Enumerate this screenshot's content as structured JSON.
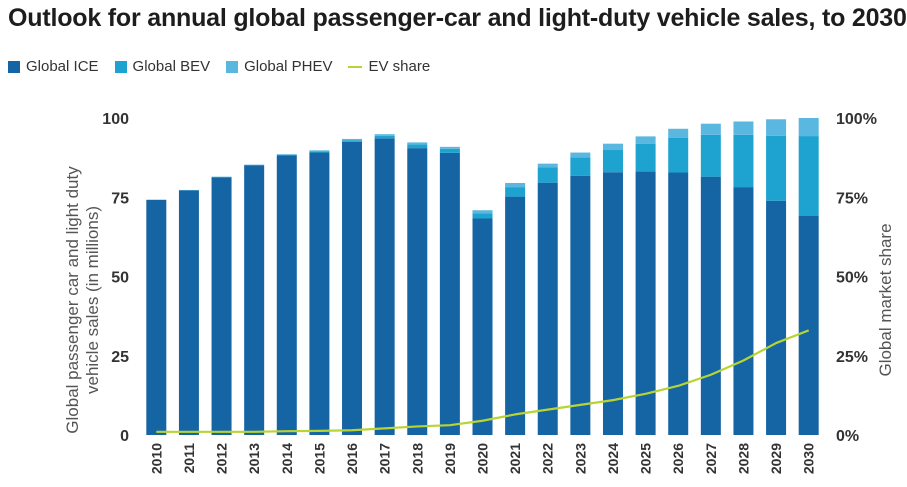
{
  "chart_data": {
    "type": "bar",
    "title": "Outlook for annual global passenger-car and light-duty vehicle sales, to 2030",
    "categories": [
      "2010",
      "2011",
      "2012",
      "2013",
      "2014",
      "2015",
      "2016",
      "2017",
      "2018",
      "2019",
      "2020",
      "2021",
      "2022",
      "2023",
      "2024",
      "2025",
      "2026",
      "2027",
      "2028",
      "2029",
      "2030"
    ],
    "series": [
      {
        "name": "Global ICE",
        "color": "#1565a5",
        "values": [
          74.2,
          77.2,
          81.3,
          85.1,
          88.2,
          89.1,
          92.5,
          93.6,
          90.5,
          89.0,
          68.3,
          75.2,
          79.6,
          81.8,
          82.9,
          83.1,
          82.8,
          81.5,
          78.2,
          73.9,
          69.2
        ]
      },
      {
        "name": "Global BEV",
        "color": "#1ea3d0",
        "values": [
          0.0,
          0.05,
          0.1,
          0.1,
          0.2,
          0.4,
          0.5,
          0.8,
          1.2,
          1.3,
          1.6,
          3.0,
          4.8,
          5.8,
          7.0,
          8.8,
          11.0,
          13.2,
          16.5,
          20.5,
          25.1
        ]
      },
      {
        "name": "Global PHEV",
        "color": "#5ab7e0",
        "values": [
          0.0,
          0.05,
          0.1,
          0.1,
          0.2,
          0.3,
          0.4,
          0.5,
          0.6,
          0.6,
          1.0,
          1.3,
          1.2,
          1.5,
          2.0,
          2.3,
          2.8,
          3.5,
          4.2,
          5.2,
          5.7
        ]
      }
    ],
    "line_series": {
      "name": "EV share",
      "color": "#b8d432",
      "values": [
        0.01,
        0.01,
        0.01,
        0.01,
        0.012,
        0.013,
        0.015,
        0.021,
        0.027,
        0.031,
        0.045,
        0.065,
        0.08,
        0.095,
        0.11,
        0.13,
        0.155,
        0.19,
        0.235,
        0.29,
        0.33
      ]
    },
    "ylabel": "Global passenger car and light duty vehicle sales (in millions)",
    "ylabel_lines": [
      "Global passenger car and light duty",
      "vehicle sales (in millions)"
    ],
    "y2label": "Global market share",
    "ylim": [
      0,
      100
    ],
    "y2lim": [
      0,
      1
    ],
    "yticks": [
      0,
      25,
      50,
      75,
      100
    ],
    "y2ticks": [
      "0%",
      "25%",
      "50%",
      "75%",
      "100%"
    ],
    "grid": false,
    "legend_position": "top-left"
  },
  "legend": {
    "items": [
      {
        "label": "Global ICE",
        "color": "#1565a5",
        "kind": "square"
      },
      {
        "label": "Global BEV",
        "color": "#1ea3d0",
        "kind": "square"
      },
      {
        "label": "Global PHEV",
        "color": "#5ab7e0",
        "kind": "square"
      },
      {
        "label": "EV share",
        "color": "#b8d432",
        "kind": "line"
      }
    ]
  }
}
